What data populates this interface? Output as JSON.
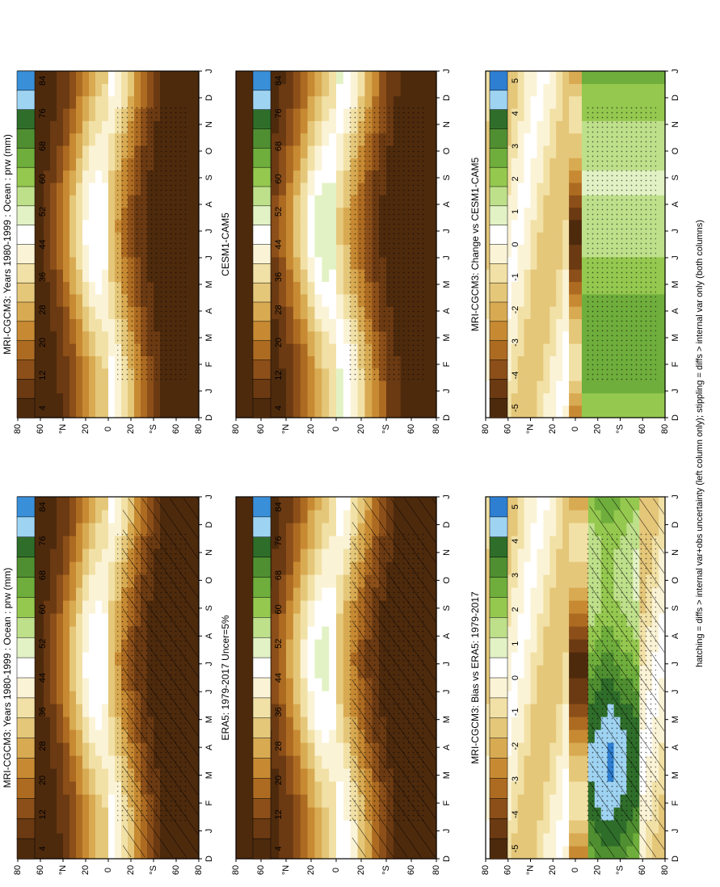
{
  "figure": {
    "footnote": "hatching = diffs > internal var+obs uncertainty (left column only); stippling = diffs > internal var only (both columns)"
  },
  "scales": {
    "absolute": {
      "colors": [
        "#3a8fd9",
        "#9fd3f2",
        "#2f6e2a",
        "#4f8f31",
        "#6fae3c",
        "#95c84f",
        "#bfe08b",
        "#e3f2c5",
        "#ffffff",
        "#fbf3d6",
        "#f2e1a6",
        "#e5c77a",
        "#d8aa52",
        "#c78a33",
        "#ad6b22",
        "#8c4f19",
        "#6b3a12",
        "#4e2a0d"
      ],
      "labels": [
        "84",
        "76",
        "68",
        "60",
        "52",
        "44",
        "36",
        "28",
        "20",
        "12",
        "4"
      ]
    },
    "difference": {
      "colors": [
        "#2e7fd2",
        "#9fd3f2",
        "#2f6e2a",
        "#4f8f31",
        "#6fae3c",
        "#95c84f",
        "#bfe08b",
        "#e3f2c5",
        "#ffffff",
        "#fbf3d6",
        "#f2e1a6",
        "#e5c77a",
        "#d8aa52",
        "#c78a33",
        "#ad6b22",
        "#8c4f19",
        "#6b3a12",
        "#4e2a0d"
      ],
      "labels": [
        "5",
        "4",
        "3",
        "2",
        "1",
        "0",
        "-1",
        "-2",
        "-3",
        "-4",
        "-5"
      ]
    }
  },
  "chart_data": [
    {
      "type": "heatmap",
      "title": "MRI-CGCM3: Years 1980-1999 : Ocean : prw (mm)",
      "x_ticks": [
        "D",
        "J",
        "F",
        "M",
        "A",
        "M",
        "J",
        "J",
        "A",
        "S",
        "O",
        "N",
        "D",
        "J"
      ],
      "y_ticks": [
        "80",
        "60",
        "°N",
        "20",
        "0",
        "20",
        "°S",
        "60",
        "80"
      ],
      "scale": "absolute",
      "hatching": true,
      "stippling": true,
      "max_value": 48,
      "itcz_lat": 5
    },
    {
      "type": "heatmap",
      "title": "MRI-CGCM3: Years 1980-1999 : Ocean : prw (mm)",
      "x_ticks": [
        "D",
        "J",
        "F",
        "M",
        "A",
        "M",
        "J",
        "J",
        "A",
        "S",
        "O",
        "N",
        "D",
        "J"
      ],
      "y_ticks": [
        "80",
        "60",
        "°N",
        "20",
        "0",
        "20",
        "°S",
        "60",
        "80"
      ],
      "scale": "absolute",
      "hatching": false,
      "stippling": true,
      "max_value": 48,
      "itcz_lat": 5
    },
    {
      "type": "heatmap",
      "title": "ERA5: 1979-2017 Uncer=5%",
      "x_ticks": [
        "D",
        "J",
        "F",
        "M",
        "A",
        "M",
        "J",
        "J",
        "A",
        "S",
        "O",
        "N",
        "D",
        "J"
      ],
      "y_ticks": [
        "80",
        "60",
        "°N",
        "20",
        "0",
        "20",
        "°S",
        "60",
        "80"
      ],
      "scale": "absolute",
      "hatching": true,
      "stippling": true,
      "max_value": 50,
      "itcz_lat": 5
    },
    {
      "type": "heatmap",
      "title": "CESM1-CAM5",
      "x_ticks": [
        "D",
        "J",
        "F",
        "M",
        "A",
        "M",
        "J",
        "J",
        "A",
        "S",
        "O",
        "N",
        "D",
        "J"
      ],
      "y_ticks": [
        "80",
        "60",
        "°N",
        "20",
        "0",
        "20",
        "°S",
        "60",
        "80"
      ],
      "scale": "absolute",
      "hatching": false,
      "stippling": true,
      "max_value": 52,
      "itcz_lat": 3
    },
    {
      "type": "heatmap",
      "title": "MRI-CGCM3: Bias vs ERA5: 1979-2017",
      "x_ticks": [
        "D",
        "J",
        "F",
        "M",
        "A",
        "M",
        "J",
        "J",
        "A",
        "S",
        "O",
        "N",
        "D",
        "J"
      ],
      "y_ticks": [
        "80",
        "60",
        "°N",
        "20",
        "0",
        "20",
        "°S",
        "60",
        "80"
      ],
      "scale": "difference",
      "hatching": true,
      "stippling": true
    },
    {
      "type": "heatmap",
      "title": "MRI-CGCM3: Change vs CESM1-CAM5",
      "x_ticks": [
        "D",
        "J",
        "F",
        "M",
        "A",
        "M",
        "J",
        "J",
        "A",
        "S",
        "O",
        "N",
        "D",
        "J"
      ],
      "y_ticks": [
        "80",
        "60",
        "°N",
        "20",
        "0",
        "20",
        "°S",
        "60",
        "80"
      ],
      "scale": "difference",
      "hatching": false,
      "stippling": true
    }
  ]
}
